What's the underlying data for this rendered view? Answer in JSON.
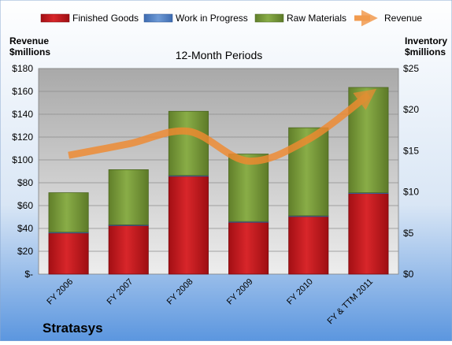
{
  "company": "Stratasys",
  "colors": {
    "finished_goods": "#c0161b",
    "work_in_progress": "#4f7fc4",
    "raw_materials": "#7ba23a",
    "revenue": "#f08a30"
  },
  "chart_data": {
    "type": "bar",
    "subtitle": "12-Month Periods",
    "left_axis_label": [
      "Revenue",
      "$millions"
    ],
    "right_axis_label": [
      "Inventory",
      "$millions"
    ],
    "categories": [
      "FY 2006",
      "FY 2007",
      "FY 2008",
      "FY 2009",
      "FY 2010",
      "FY & TTM 2011"
    ],
    "series": [
      {
        "name": "Finished Goods",
        "type": "stacked-bar",
        "axis": "right",
        "values": [
          5.0,
          5.9,
          11.9,
          6.3,
          7.0,
          9.8
        ]
      },
      {
        "name": "Work in Progress",
        "type": "stacked-bar",
        "axis": "right",
        "values": [
          0.1,
          0.1,
          0.1,
          0.1,
          0.1,
          0.1
        ]
      },
      {
        "name": "Raw Materials",
        "type": "stacked-bar",
        "axis": "right",
        "values": [
          4.8,
          6.7,
          7.8,
          8.2,
          10.7,
          12.8
        ]
      },
      {
        "name": "Revenue",
        "type": "line",
        "axis": "left",
        "values": [
          104,
          114,
          125,
          99,
          118,
          157
        ]
      }
    ],
    "left_axis": {
      "min": 0,
      "max": 180,
      "step": 20,
      "tick_labels": [
        "$-",
        "$20",
        "$40",
        "$60",
        "$80",
        "$100",
        "$120",
        "$140",
        "$160",
        "$180"
      ]
    },
    "right_axis": {
      "min": 0,
      "max": 25,
      "step": 5,
      "tick_labels": [
        "$0",
        "$5",
        "$10",
        "$15",
        "$20",
        "$25"
      ]
    },
    "grid": true,
    "legend_position": "top"
  }
}
